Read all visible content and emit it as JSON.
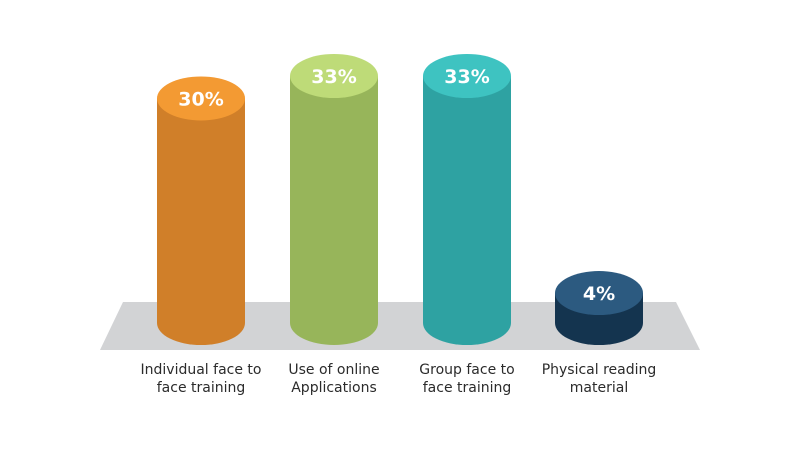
{
  "chart_data": {
    "type": "bar",
    "categories": [
      [
        "Individual face to",
        "face training"
      ],
      [
        "Use of online",
        "Applications"
      ],
      [
        "Group face to",
        "face training"
      ],
      [
        "Physical reading",
        "material"
      ]
    ],
    "values": [
      30,
      33,
      33,
      4
    ],
    "value_labels": [
      "30%",
      "33%",
      "33%",
      "4%"
    ],
    "ylim": [
      0,
      33
    ],
    "grid": false,
    "legend": "none",
    "colors": [
      {
        "body": "#d07f29",
        "top": "#f39a33"
      },
      {
        "body": "#97b55a",
        "top": "#bedb78"
      },
      {
        "body": "#2ea2a2",
        "top": "#3ec3c1"
      },
      {
        "body": "#14344f",
        "top": "#2c5a80"
      }
    ],
    "platform_color": "#d2d3d5"
  }
}
